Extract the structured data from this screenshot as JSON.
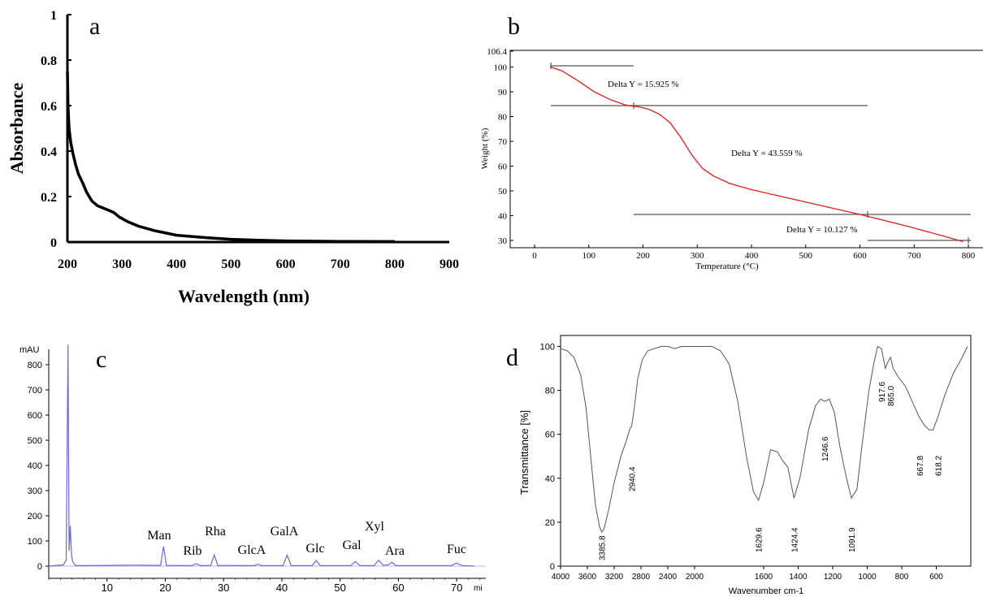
{
  "chart_data": [
    {
      "panel": "a",
      "type": "line",
      "xlabel": "Wavelength (nm)",
      "ylabel": "Absorbance",
      "xlim": [
        200,
        900
      ],
      "ylim": [
        0,
        1
      ],
      "xticks": [
        200,
        300,
        400,
        500,
        600,
        700,
        800,
        900
      ],
      "yticks": [
        0,
        0.2,
        0.4,
        0.6,
        0.8,
        1
      ],
      "ytick_labels": [
        "0",
        "0.2",
        "0.4",
        "0.6",
        "0.8",
        "1"
      ],
      "series": [
        {
          "x": [
            200,
            201,
            203,
            206,
            210,
            215,
            220,
            228,
            235,
            245,
            255,
            265,
            275,
            285,
            295,
            310,
            330,
            360,
            400,
            450,
            500,
            550,
            600,
            700,
            800
          ],
          "y": [
            0.75,
            0.6,
            0.5,
            0.44,
            0.39,
            0.34,
            0.3,
            0.26,
            0.22,
            0.18,
            0.16,
            0.15,
            0.14,
            0.13,
            0.11,
            0.09,
            0.07,
            0.05,
            0.03,
            0.02,
            0.012,
            0.008,
            0.005,
            0.003,
            0.002
          ]
        }
      ]
    },
    {
      "panel": "b",
      "type": "line",
      "xlabel": "Temperature (°C)",
      "ylabel": "Weight (%)",
      "xlim": [
        -75,
        805
      ],
      "ylim": [
        27,
        106.4
      ],
      "xticks": [
        0,
        100,
        200,
        300,
        400,
        500,
        600,
        700,
        800
      ],
      "yticks": [
        30,
        40,
        50,
        60,
        70,
        80,
        90,
        100,
        106.4
      ],
      "series": [
        {
          "x": [
            30,
            50,
            80,
            110,
            140,
            170,
            190,
            210,
            230,
            250,
            270,
            290,
            310,
            330,
            360,
            400,
            450,
            500,
            550,
            600,
            650,
            700,
            750,
            790
          ],
          "y": [
            100,
            98.5,
            94.5,
            90,
            86.8,
            84.5,
            84,
            83,
            81,
            77.5,
            71.5,
            64.5,
            59,
            56,
            53,
            50.5,
            48,
            45.5,
            43,
            40.5,
            37.8,
            35,
            32,
            29.5
          ]
        }
      ],
      "annotations": [
        "Delta Y = 15.925 %",
        "Delta Y = 43.559 %",
        "Delta Y = 10.127 %"
      ]
    },
    {
      "panel": "c",
      "type": "line",
      "ylabel": "mAU",
      "xunit": "min",
      "xlim": [
        0,
        75
      ],
      "ylim": [
        -30,
        930
      ],
      "xticks": [
        10,
        20,
        30,
        40,
        50,
        60,
        70
      ],
      "yticks": [
        0,
        100,
        200,
        300,
        400,
        500,
        600,
        700,
        800
      ],
      "series": [
        {
          "x": [
            0,
            2.5,
            3.0,
            3.3,
            3.5,
            3.7,
            3.9,
            4.1,
            4.3,
            4.6,
            5.0,
            15.0,
            19.2,
            19.7,
            20.2,
            24.6,
            25.3,
            26.0,
            27.8,
            28.4,
            29.0,
            35.3,
            35.9,
            36.5,
            40.2,
            40.9,
            41.6,
            45.2,
            45.9,
            46.6,
            51.8,
            52.6,
            53.4,
            55.8,
            56.6,
            57.4,
            58.2,
            58.9,
            59.6,
            69.0,
            70.0,
            71.0,
            73
          ],
          "y": [
            0,
            5,
            25,
            880,
            60,
            160,
            45,
            20,
            10,
            3,
            2,
            4,
            3,
            78,
            3,
            2,
            10,
            2,
            3,
            45,
            3,
            2,
            8,
            2,
            2,
            44,
            2,
            2,
            22,
            2,
            2,
            18,
            2,
            2,
            24,
            4,
            5,
            15,
            2,
            2,
            12,
            2,
            0
          ]
        }
      ],
      "peak_labels": [
        "Man",
        "Rib",
        "Rha",
        "GlcA",
        "GalA",
        "Glc",
        "Gal",
        "Xyl",
        "Ara",
        "Fuc"
      ],
      "xunit_label": "mi"
    },
    {
      "panel": "d",
      "type": "line",
      "xlabel": "Wavenumber cm-1",
      "ylabel": "Transmittance [%]",
      "xlim": [
        4000,
        400
      ],
      "ylim": [
        0,
        105
      ],
      "xticks": [
        4000,
        3600,
        3200,
        2800,
        2400,
        2000,
        1600,
        1400,
        1200,
        1000,
        800,
        600
      ],
      "yticks": [
        0,
        20,
        40,
        60,
        80,
        100
      ],
      "series": [
        {
          "x": [
            4000,
            3900,
            3800,
            3700,
            3620,
            3550,
            3480,
            3420,
            3385.8,
            3350,
            3280,
            3200,
            3100,
            3020,
            2960,
            2940.4,
            2900,
            2850,
            2780,
            2700,
            2600,
            2500,
            2400,
            2300,
            2200,
            2100,
            2000,
            1900,
            1850,
            1800,
            1750,
            1700,
            1660,
            1629.6,
            1600,
            1560,
            1520,
            1490,
            1460,
            1424.4,
            1390,
            1340,
            1300,
            1270,
            1246.6,
            1220,
            1190,
            1160,
            1120,
            1091.9,
            1060,
            1030,
            990,
            960,
            940,
            917.6,
            895,
            880,
            865.0,
            850,
            820,
            780,
            740,
            700,
            667.8,
            640,
            618.2,
            590,
            550,
            500,
            450,
            420
          ],
          "y": [
            99,
            98,
            95,
            87,
            72,
            50,
            28,
            18,
            15.5,
            17,
            26,
            38,
            50,
            57,
            63,
            63.5,
            72,
            85,
            94,
            98,
            99,
            100,
            100,
            99,
            100,
            100,
            100,
            100,
            98,
            92,
            75,
            50,
            34,
            30,
            38,
            53,
            52,
            48,
            45,
            31,
            40,
            62,
            73,
            76,
            75,
            76,
            70,
            55,
            40,
            31,
            35,
            55,
            80,
            93,
            100,
            99,
            90,
            93,
            95,
            90,
            86,
            82,
            75,
            68,
            64,
            62,
            62,
            68,
            78,
            88,
            95,
            100
          ]
        }
      ],
      "peak_labels": [
        "3385.8",
        "2940.4",
        "1629.6",
        "1424.4",
        "1246.6",
        "1091.9",
        "917.6",
        "865.0",
        "667.8",
        "618.2"
      ]
    }
  ],
  "panel_letters": {
    "a": "a",
    "b": "b",
    "c": "c",
    "d": "d"
  },
  "colors": {
    "a_line": "#000000",
    "b_line": "#d62020",
    "c_line": "#6a6ad0",
    "d_line": "#555555",
    "axis": "#000000",
    "grid_line": "#555555"
  }
}
